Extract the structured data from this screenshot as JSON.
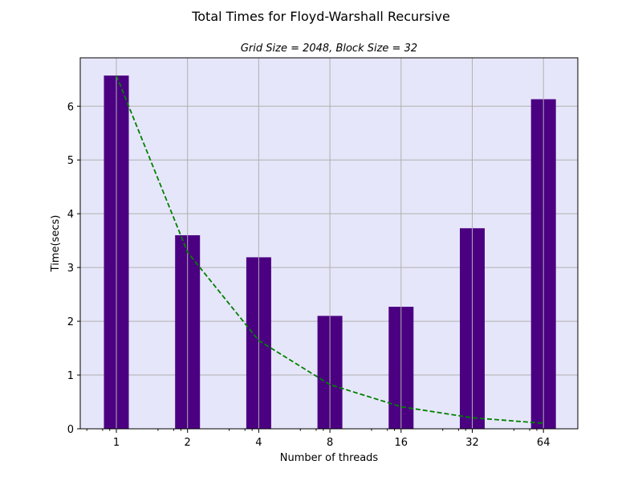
{
  "chart_data": {
    "type": "bar",
    "title": "Total Times for Floyd-Warshall Recursive",
    "subtitle": "Grid Size = 2048, Block Size = 32",
    "xlabel": "Number of threads",
    "ylabel": "Time(secs)",
    "x_scale": "log2",
    "categories": [
      "1",
      "2",
      "4",
      "8",
      "16",
      "32",
      "64"
    ],
    "x": [
      1,
      2,
      4,
      8,
      16,
      32,
      64
    ],
    "values": [
      6.57,
      3.6,
      3.19,
      2.1,
      2.27,
      3.73,
      6.13
    ],
    "ideal_line": [
      6.57,
      3.285,
      1.6425,
      0.82125,
      0.410625,
      0.2053125,
      0.10265625
    ],
    "ylim": [
      0,
      6.9
    ],
    "yticks": [
      0,
      1,
      2,
      3,
      4,
      5,
      6
    ],
    "grid": true,
    "bar_color": "#4b0082",
    "line_color": "#008000",
    "line_style": "dashed",
    "plot_background": "#e6e6fa",
    "grid_color": "#b0b0b0"
  }
}
